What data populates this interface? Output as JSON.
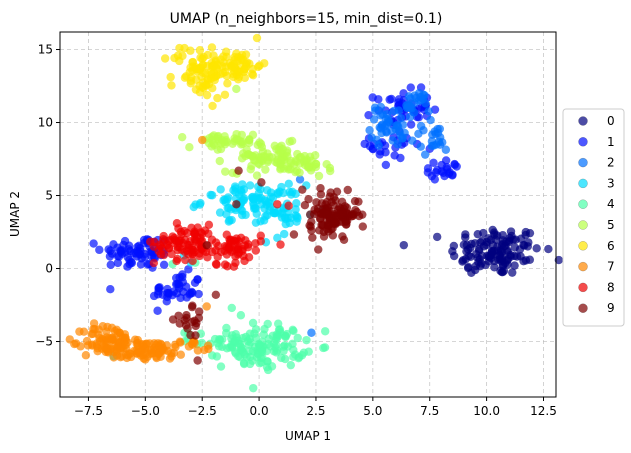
{
  "chart_data": {
    "type": "scatter",
    "title": "UMAP (n_neighbors=15, min_dist=0.1)",
    "xlabel": "UMAP 1",
    "ylabel": "UMAP 2",
    "xlim": [
      -8.75,
      13.05
    ],
    "ylim": [
      -8.8,
      16.2
    ],
    "x_ticks": [
      -7.5,
      -5.0,
      -2.5,
      0.0,
      2.5,
      5.0,
      7.5,
      10.0,
      12.5
    ],
    "x_tick_labels": [
      "−7.5",
      "−5.0",
      "−2.5",
      "0.0",
      "2.5",
      "5.0",
      "7.5",
      "10.0",
      "12.5"
    ],
    "y_ticks": [
      -5,
      0,
      5,
      10,
      15
    ],
    "y_tick_labels": [
      "−5",
      "0",
      "5",
      "10",
      "15"
    ],
    "grid": true,
    "legend_position": "right",
    "series": [
      {
        "name": "0",
        "color": "#00007f",
        "clusters": [
          {
            "cx": 10.4,
            "cy": 1.2,
            "sx": 1.0,
            "sy": 0.85,
            "n": 120
          }
        ],
        "points": [
          [
            9.2,
            0.1
          ],
          [
            9.5,
            -0.1
          ],
          [
            11.9,
            0.6
          ]
        ]
      },
      {
        "name": "1",
        "color": "#0010ff",
        "clusters": [
          {
            "cx": -5.3,
            "cy": 1.1,
            "sx": 0.8,
            "sy": 0.6,
            "n": 70
          },
          {
            "cx": -3.6,
            "cy": -1.5,
            "sx": 0.55,
            "sy": 0.6,
            "n": 40
          },
          {
            "cx": 6.3,
            "cy": 11.0,
            "sx": 0.6,
            "sy": 0.6,
            "n": 45
          },
          {
            "cx": 5.9,
            "cy": 8.5,
            "sx": 0.5,
            "sy": 0.9,
            "n": 25
          },
          {
            "cx": 8.1,
            "cy": 6.8,
            "sx": 0.5,
            "sy": 0.3,
            "n": 20
          }
        ],
        "points": [
          [
            7.5,
            8.2
          ],
          [
            8.6,
            7.1
          ]
        ]
      },
      {
        "name": "2",
        "color": "#0070ff",
        "clusters": [
          {
            "cx": 5.7,
            "cy": 9.8,
            "sx": 0.4,
            "sy": 0.7,
            "n": 40
          },
          {
            "cx": 6.8,
            "cy": 11.2,
            "sx": 0.35,
            "sy": 0.5,
            "n": 25
          },
          {
            "cx": 7.6,
            "cy": 8.9,
            "sx": 0.5,
            "sy": 0.5,
            "n": 20
          }
        ],
        "points": [
          [
            7.3,
            7.8
          ],
          [
            2.3,
            -4.4
          ],
          [
            1.8,
            6.1
          ]
        ]
      },
      {
        "name": "3",
        "color": "#00dcfe",
        "clusters": [
          {
            "cx": -0.3,
            "cy": 4.6,
            "sx": 1.1,
            "sy": 0.55,
            "n": 90
          },
          {
            "cx": 1.1,
            "cy": 3.6,
            "sx": 0.6,
            "sy": 0.45,
            "n": 30
          }
        ],
        "points": [
          [
            0.3,
            1.8
          ],
          [
            0.8,
            2.1
          ],
          [
            -1.3,
            3.3
          ],
          [
            -3.0,
            0.4
          ],
          [
            -6.4,
            -6.0
          ],
          [
            -3.3,
            0.9
          ]
        ]
      },
      {
        "name": "4",
        "color": "#4dffaa",
        "clusters": [
          {
            "cx": 0.2,
            "cy": -5.3,
            "sx": 0.9,
            "sy": 0.75,
            "n": 120
          },
          {
            "cx": -1.6,
            "cy": -4.9,
            "sx": 0.8,
            "sy": 0.3,
            "n": 20
          }
        ],
        "points": [
          [
            -0.8,
            -3.2
          ],
          [
            -3.8,
            0.3
          ],
          [
            -2.8,
            0.4
          ],
          [
            -1.2,
            -2.7
          ]
        ]
      },
      {
        "name": "5",
        "color": "#b6ff48",
        "clusters": [
          {
            "cx": -1.7,
            "cy": 8.6,
            "sx": 0.7,
            "sy": 0.35,
            "n": 40
          },
          {
            "cx": 0.6,
            "cy": 7.6,
            "sx": 1.0,
            "sy": 0.5,
            "n": 80
          },
          {
            "cx": 2.0,
            "cy": 6.9,
            "sx": 0.5,
            "sy": 0.35,
            "n": 25
          }
        ],
        "points": [
          [
            -1.0,
            12.3
          ]
        ]
      },
      {
        "name": "6",
        "color": "#ffe500",
        "clusters": [
          {
            "cx": -2.6,
            "cy": 13.5,
            "sx": 0.6,
            "sy": 0.9,
            "n": 70
          },
          {
            "cx": -1.0,
            "cy": 13.9,
            "sx": 0.55,
            "sy": 0.55,
            "n": 60
          }
        ],
        "points": [
          [
            -3.5,
            15.1
          ],
          [
            -1.5,
            11.9
          ]
        ]
      },
      {
        "name": "7",
        "color": "#ff8700",
        "clusters": [
          {
            "cx": -6.6,
            "cy": -5.0,
            "sx": 0.55,
            "sy": 0.6,
            "n": 80
          },
          {
            "cx": -4.9,
            "cy": -5.6,
            "sx": 0.9,
            "sy": 0.35,
            "n": 70
          },
          {
            "cx": -2.9,
            "cy": -5.4,
            "sx": 0.5,
            "sy": 0.25,
            "n": 15
          }
        ],
        "points": [
          [
            -2.5,
            8.8
          ],
          [
            -2.3,
            -2.6
          ]
        ]
      },
      {
        "name": "8",
        "color": "#f00000",
        "clusters": [
          {
            "cx": -3.2,
            "cy": 1.8,
            "sx": 0.7,
            "sy": 0.6,
            "n": 80
          },
          {
            "cx": -1.3,
            "cy": 1.4,
            "sx": 0.7,
            "sy": 0.55,
            "n": 60
          }
        ],
        "points": [
          [
            0.8,
            4.4
          ],
          [
            1.3,
            4.3
          ]
        ]
      },
      {
        "name": "9",
        "color": "#7f0000",
        "clusters": [
          {
            "cx": 3.3,
            "cy": 3.7,
            "sx": 0.55,
            "sy": 0.65,
            "n": 120
          },
          {
            "cx": -3.0,
            "cy": -3.8,
            "sx": 0.35,
            "sy": 0.5,
            "n": 18
          }
        ],
        "points": [
          [
            -0.9,
            6.7
          ],
          [
            -1.0,
            4.4
          ],
          [
            2.7,
            5.5
          ],
          [
            0.1,
            5.9
          ],
          [
            1.9,
            5.4
          ],
          [
            -2.7,
            -6.3
          ],
          [
            -2.3,
            1.6
          ],
          [
            -1.9,
            -1.8
          ],
          [
            2.6,
            1.3
          ],
          [
            2.3,
            2.6
          ]
        ]
      }
    ]
  }
}
